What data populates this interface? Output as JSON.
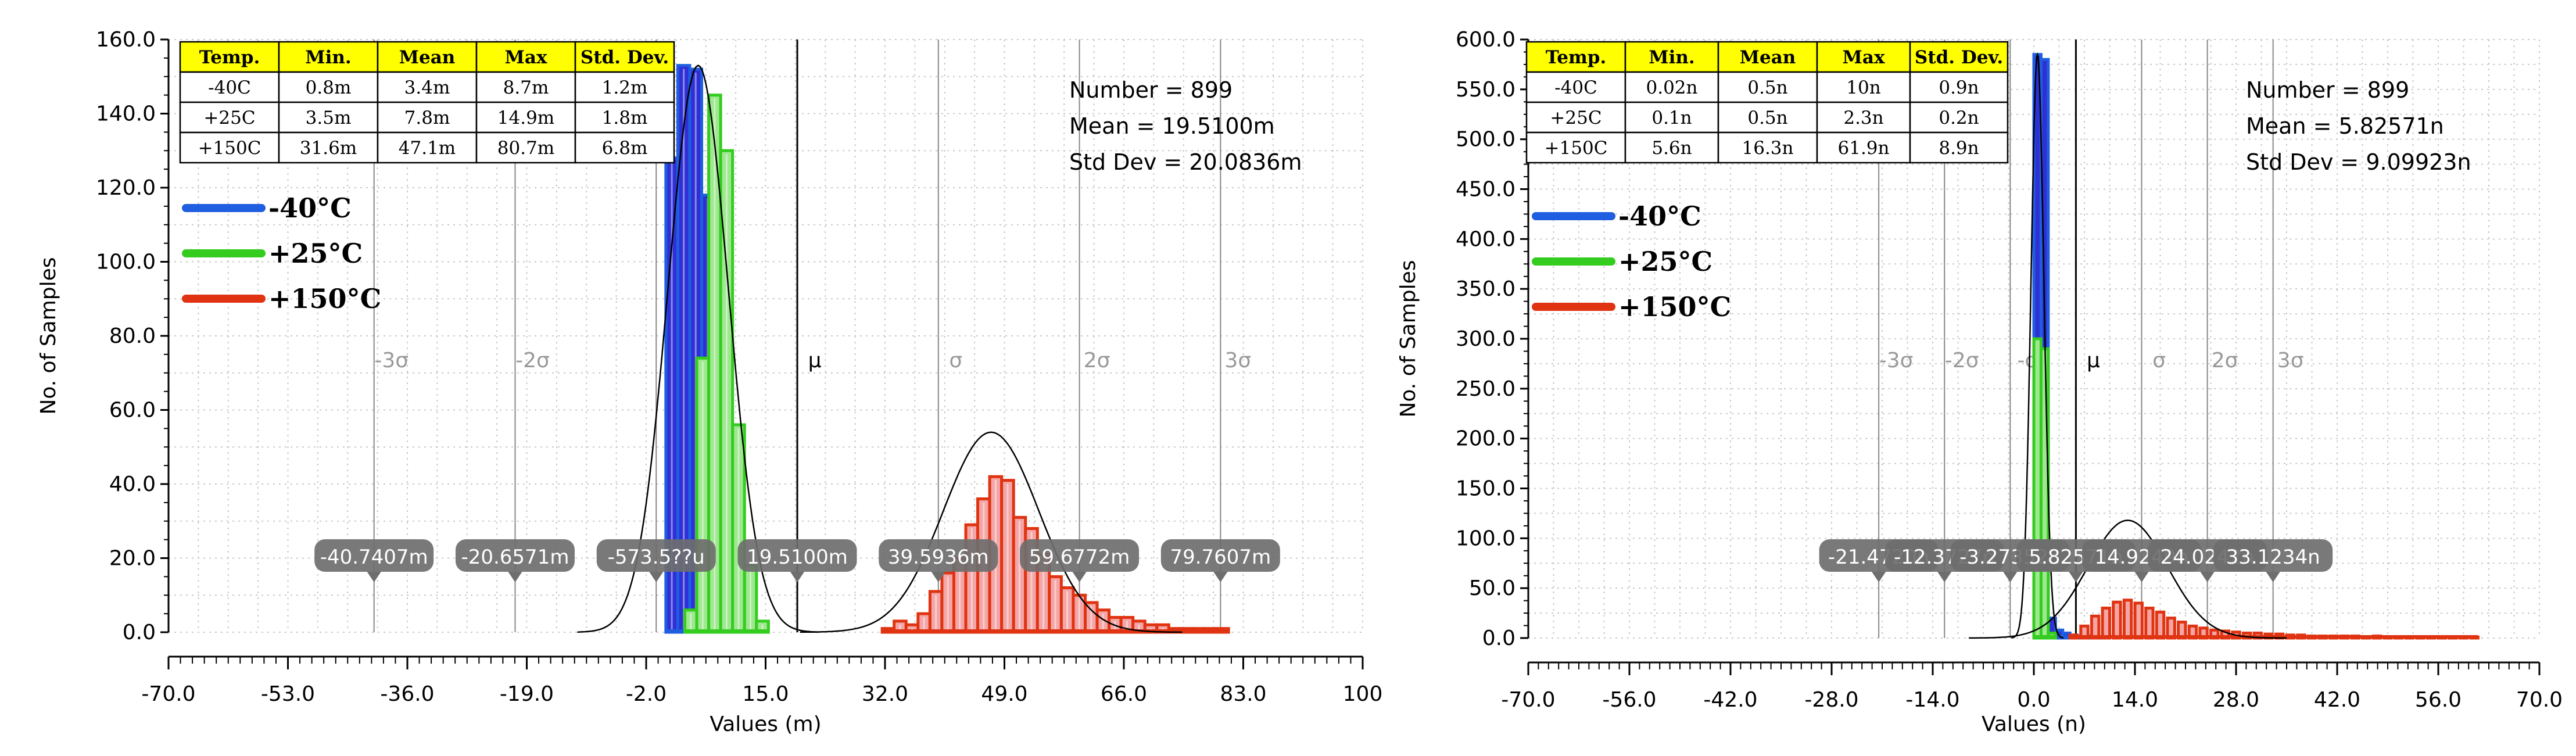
{
  "chart_data": [
    {
      "type": "bar",
      "xlabel": "Values (m)",
      "ylabel": "No. of Samples",
      "xlim": [
        -70,
        100
      ],
      "ylim": [
        0,
        160
      ],
      "x_ticks": [
        -70,
        -53,
        -36,
        -19,
        -2,
        15,
        32,
        49,
        66,
        83,
        100
      ],
      "x_tick_labels": [
        "-70.0",
        "-53.0",
        "-36.0",
        "-19.0",
        "-2.0",
        "15.0",
        "32.0",
        "49.0",
        "66.0",
        "83.0",
        "100"
      ],
      "y_ticks": [
        0,
        20,
        40,
        60,
        80,
        100,
        120,
        140,
        160
      ],
      "y_tick_labels": [
        "0.0",
        "20.0",
        "40.0",
        "60.0",
        "80.0",
        "100.0",
        "120.0",
        "140.0",
        "160.0"
      ],
      "grid": true,
      "stats_table": {
        "headers": [
          "Temp.",
          "Min.",
          "Mean",
          "Max",
          "Std. Dev."
        ],
        "rows": [
          [
            "-40C",
            "0.8m",
            "3.4m",
            "8.7m",
            "1.2m"
          ],
          [
            "+25C",
            "3.5m",
            "7.8m",
            "14.9m",
            "1.8m"
          ],
          [
            "+150C",
            "31.6m",
            "47.1m",
            "80.7m",
            "6.8m"
          ]
        ],
        "header_color": "#ffff00"
      },
      "legend": {
        "placement": "top-left",
        "entries": [
          {
            "label": "-40°C",
            "color": "#1f5ee0"
          },
          {
            "label": "+25°C",
            "color": "#33cc1f"
          },
          {
            "label": "+150°C",
            "color": "#e03311"
          }
        ]
      },
      "summary": [
        "Number = 899",
        "Mean = 19.5100m",
        "Std Dev = 20.0836m"
      ],
      "sigma_lines": [
        {
          "x": -40.7407,
          "symbol": "-3σ",
          "label": "-40.7407m"
        },
        {
          "x": -20.6571,
          "symbol": "-2σ",
          "label": "-20.6571m"
        },
        {
          "x": -0.5735,
          "symbol": "-σ",
          "label": "-573.5??u"
        },
        {
          "x": 19.51,
          "symbol": "μ",
          "label": "19.5100m"
        },
        {
          "x": 39.5936,
          "symbol": "σ",
          "label": "39.5936m"
        },
        {
          "x": 59.6772,
          "symbol": "2σ",
          "label": "59.6772m"
        },
        {
          "x": 79.7607,
          "symbol": "3σ",
          "label": "79.7607m"
        }
      ],
      "bin_width": 1.7,
      "series": [
        {
          "name": "-40°C",
          "color": "#1f5ee0",
          "fill": "#2f2fd6",
          "bin_starts": [
            0.8,
            2.5,
            4.2,
            5.9,
            7.6
          ],
          "values": [
            128,
            153,
            152,
            118,
            8
          ]
        },
        {
          "name": "+25°C",
          "color": "#33cc1f",
          "fill": "#9fe890",
          "bin_starts": [
            3.5,
            5.2,
            6.9,
            8.6,
            10.3,
            12.0,
            13.7
          ],
          "values": [
            6,
            74,
            145,
            130,
            56,
            18,
            3
          ]
        },
        {
          "name": "+150°C",
          "color": "#e03311",
          "fill": "#f4a6a6",
          "bin_starts": [
            31.6,
            33.3,
            35.0,
            36.7,
            38.4,
            40.1,
            41.8,
            43.5,
            45.2,
            46.9,
            48.6,
            50.3,
            52.0,
            53.7,
            55.4,
            57.1,
            58.8,
            60.5,
            62.2,
            63.9,
            65.6,
            67.3,
            69.0,
            70.7,
            72.4,
            74.1,
            75.8,
            77.5,
            79.2
          ],
          "values": [
            1,
            3,
            2,
            5,
            11,
            16,
            20,
            29,
            36,
            42,
            41,
            31,
            28,
            21,
            15,
            12,
            10,
            8,
            6,
            4,
            4,
            3,
            2,
            2,
            1,
            1,
            1,
            1,
            1
          ]
        }
      ],
      "normal_fit": {
        "mean": 19.51,
        "std": 20.0836,
        "peak": 54,
        "separate_peaks": [
          {
            "mean": 5.4,
            "std": 4.3,
            "peak": 153
          },
          {
            "mean": 47.1,
            "std": 6.8,
            "peak": 54
          }
        ]
      }
    },
    {
      "type": "bar",
      "xlabel": "Values (n)",
      "ylabel": "No. of Samples",
      "xlim": [
        -70,
        70
      ],
      "ylim": [
        0,
        600
      ],
      "x_ticks": [
        -70,
        -56,
        -42,
        -28,
        -14,
        0,
        14,
        28,
        42,
        56,
        70
      ],
      "x_tick_labels": [
        "-70.0",
        "-56.0",
        "-42.0",
        "-28.0",
        "-14.0",
        "0.0",
        "14.0",
        "28.0",
        "42.0",
        "56.0",
        "70.0"
      ],
      "y_ticks": [
        0,
        50,
        100,
        150,
        200,
        250,
        300,
        350,
        400,
        450,
        500,
        550,
        600
      ],
      "y_tick_labels": [
        "0.0",
        "50.0",
        "100.0",
        "150.0",
        "200.0",
        "250.0",
        "300.0",
        "350.0",
        "400.0",
        "450.0",
        "500.0",
        "550.0",
        "600.0"
      ],
      "grid": true,
      "stats_table": {
        "headers": [
          "Temp.",
          "Min.",
          "Mean",
          "Max",
          "Std. Dev."
        ],
        "rows": [
          [
            "-40C",
            "0.02n",
            "0.5n",
            "10n",
            "0.9n"
          ],
          [
            "+25C",
            "0.1n",
            "0.5n",
            "2.3n",
            "0.2n"
          ],
          [
            "+150C",
            "5.6n",
            "16.3n",
            "61.9n",
            "8.9n"
          ]
        ],
        "header_color": "#ffff00"
      },
      "legend": {
        "placement": "top-left",
        "entries": [
          {
            "label": "-40°C",
            "color": "#1f5ee0"
          },
          {
            "label": "+25°C",
            "color": "#33cc1f"
          },
          {
            "label": "+150°C",
            "color": "#e03311"
          }
        ]
      },
      "summary": [
        "Number = 899",
        "Mean = 5.82571n",
        "Std Dev = 9.09923n"
      ],
      "sigma_lines": [
        {
          "x": -21.472,
          "symbol": "-3σ",
          "label": "-21.4720n"
        },
        {
          "x": -12.372,
          "symbol": "-2σ",
          "label": "-12.3727n"
        },
        {
          "x": -3.273,
          "symbol": "-σ",
          "label": "-3.27352n"
        },
        {
          "x": 5.8257,
          "symbol": "μ",
          "label": "5.82571n"
        },
        {
          "x": 14.925,
          "symbol": "σ",
          "label": "14.9249n"
        },
        {
          "x": 24.024,
          "symbol": "2σ",
          "label": "24.0242n"
        },
        {
          "x": 33.123,
          "symbol": "3σ",
          "label": "33.1234n"
        }
      ],
      "bin_width": 1.0,
      "series": [
        {
          "name": "-40°C",
          "color": "#1f5ee0",
          "fill": "#2f2fd6",
          "bin_starts": [
            0.0,
            1.0,
            2.0,
            3.0,
            4.0,
            5.0,
            6.0,
            7.0,
            8.0,
            9.0
          ],
          "values": [
            585,
            580,
            20,
            8,
            5,
            3,
            2,
            2,
            1,
            1
          ]
        },
        {
          "name": "+25°C",
          "color": "#33cc1f",
          "fill": "#9fe890",
          "bin_starts": [
            0.0,
            1.0,
            2.0
          ],
          "values": [
            300,
            290,
            5
          ]
        },
        {
          "name": "+150°C",
          "color": "#e03311",
          "fill": "#f4a6a6",
          "bin_starts": [
            5.0,
            6.5,
            8.0,
            9.5,
            11.0,
            12.5,
            14.0,
            15.5,
            17.0,
            18.5,
            20.0,
            21.5,
            23.0,
            24.5,
            26.0,
            27.5,
            29.0,
            30.5,
            32.0,
            33.5,
            35.0,
            36.5,
            38.0,
            39.5,
            41.0,
            42.5,
            44.0,
            45.5,
            47.0,
            48.5,
            50.0,
            51.5,
            53.0,
            54.5,
            56.0,
            57.5,
            59.0,
            60.5
          ],
          "values": [
            3,
            12,
            22,
            30,
            36,
            38,
            35,
            30,
            26,
            20,
            16,
            12,
            10,
            8,
            7,
            6,
            5,
            5,
            4,
            4,
            3,
            3,
            2,
            2,
            2,
            2,
            2,
            1,
            2,
            1,
            1,
            1,
            1,
            1,
            1,
            1,
            1,
            1
          ]
        }
      ],
      "normal_fit": {
        "mean": 5.82571,
        "std": 9.09923,
        "peak": 120,
        "separate_peaks": [
          {
            "mean": 0.5,
            "std": 0.9,
            "peak": 585
          },
          {
            "mean": 13,
            "std": 5.5,
            "peak": 118
          }
        ]
      }
    }
  ]
}
